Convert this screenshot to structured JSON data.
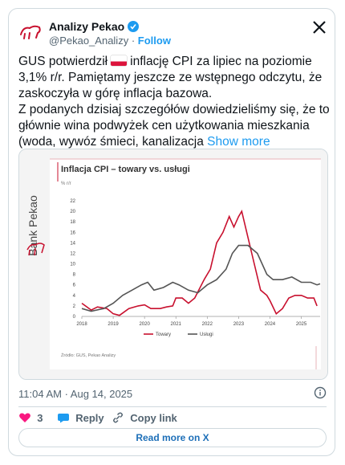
{
  "header": {
    "name": "Analizy Pekao",
    "handle": "@Pekao_Analizy",
    "separator": "·",
    "follow": "Follow"
  },
  "text": {
    "part1": "GUS potwierdził",
    "part2": "inflację CPI za lipiec na poziomie 3,1% r/r. Pamiętamy jeszcze ze wstępnego odczytu, że zaskoczyła w górę inflacja bazowa.",
    "part3": "Z podanych dzisiaj szczegółów dowiedzieliśmy się, że to głównie wina podwyżek cen użytkowania mieszkania (woda, wywóz śmieci, kanalizacja",
    "show_more": "Show more"
  },
  "chart_data": {
    "type": "line",
    "title": "Inflacja CPI – towary vs. usługi",
    "unit_label": "% r/r",
    "brand": "Bank Pekao",
    "source": "Źródło: GUS, Pekao Analizy",
    "xlim": [
      2018,
      2025.6
    ],
    "xticks": [
      2018,
      2019,
      2020,
      2021,
      2022,
      2023,
      2024,
      2025
    ],
    "ylim": [
      0,
      22
    ],
    "yticks": [
      0,
      2,
      4,
      6,
      8,
      10,
      12,
      14,
      16,
      18,
      20,
      22
    ],
    "series": [
      {
        "name": "Towary",
        "color": "#c8102e",
        "x": [
          2018.0,
          2018.3,
          2018.5,
          2018.8,
          2019.0,
          2019.2,
          2019.5,
          2019.8,
          2020.0,
          2020.2,
          2020.5,
          2020.7,
          2020.9,
          2021.0,
          2021.2,
          2021.4,
          2021.6,
          2021.9,
          2022.1,
          2022.3,
          2022.5,
          2022.7,
          2022.85,
          2023.0,
          2023.1,
          2023.3,
          2023.5,
          2023.7,
          2023.9,
          2024.0,
          2024.2,
          2024.4,
          2024.6,
          2024.8,
          2025.0,
          2025.2,
          2025.4,
          2025.5
        ],
        "values": [
          2.5,
          1.2,
          1.8,
          1.5,
          0.5,
          0.2,
          1.5,
          2,
          2.2,
          1.5,
          1.5,
          1.8,
          2,
          3.5,
          3.5,
          2.5,
          3.5,
          7,
          9,
          14,
          16,
          19,
          17,
          19,
          20,
          15,
          10,
          5,
          4,
          3,
          0.5,
          1.5,
          3.5,
          4,
          4,
          3.5,
          3.5,
          2
        ]
      },
      {
        "name": "Usługi",
        "color": "#555555",
        "x": [
          2018.0,
          2018.3,
          2018.7,
          2019.0,
          2019.3,
          2019.6,
          2019.9,
          2020.1,
          2020.3,
          2020.6,
          2020.9,
          2021.1,
          2021.4,
          2021.7,
          2022.0,
          2022.3,
          2022.6,
          2022.8,
          2023.0,
          2023.3,
          2023.6,
          2023.9,
          2024.1,
          2024.4,
          2024.7,
          2025.0,
          2025.3,
          2025.5,
          2025.6
        ],
        "values": [
          1.5,
          1.0,
          1.5,
          2.5,
          4,
          5,
          6,
          6.5,
          5,
          5.5,
          6.5,
          6,
          5,
          4.5,
          6,
          7,
          9,
          12,
          13.5,
          13.5,
          12,
          8,
          7,
          7,
          7.5,
          6.5,
          6.5,
          6,
          6.2
        ]
      }
    ]
  },
  "footer": {
    "timestamp": "11:04 AM · Aug 14, 2025",
    "likes": "3",
    "reply": "Reply",
    "copy": "Copy link",
    "read_more": "Read more on X"
  }
}
